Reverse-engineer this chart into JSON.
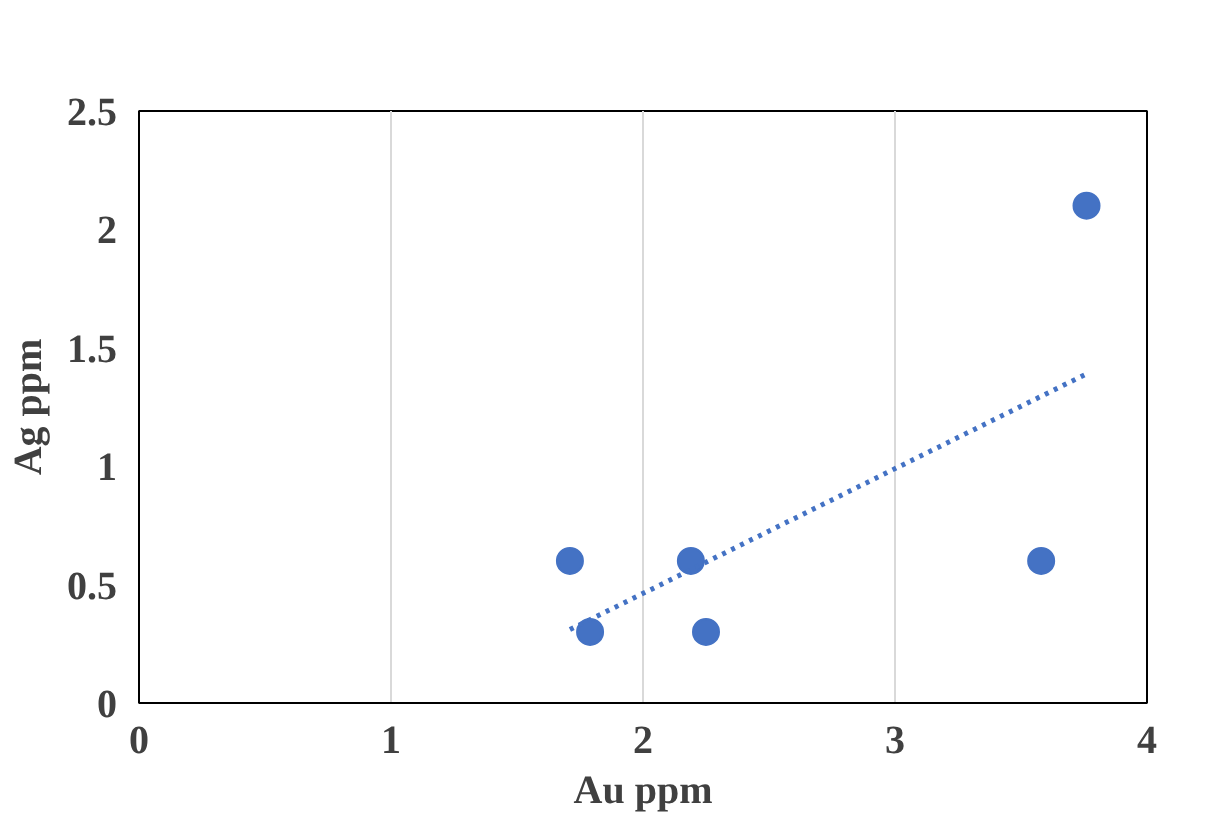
{
  "chart_data": {
    "type": "scatter",
    "xlabel": "Au ppm",
    "ylabel": "Ag ppm",
    "xlim": [
      0,
      4
    ],
    "ylim": [
      0,
      2.5
    ],
    "xticks": [
      0,
      1,
      2,
      3,
      4
    ],
    "yticks": [
      0,
      0.5,
      1,
      1.5,
      2,
      2.5
    ],
    "grid": "x",
    "marker": "circle",
    "series": [
      {
        "color": "#4472c4",
        "x": [
          1.71,
          1.79,
          2.19,
          2.25,
          3.58,
          3.76
        ],
        "values": [
          0.6,
          0.3,
          0.6,
          0.3,
          0.6,
          2.1
        ]
      },
      {
        "type": "line",
        "color": "#4472c4",
        "line_style": "dotted",
        "marker": "none",
        "x": [
          1.71,
          3.76
        ],
        "values": [
          0.31,
          1.39
        ]
      }
    ]
  }
}
